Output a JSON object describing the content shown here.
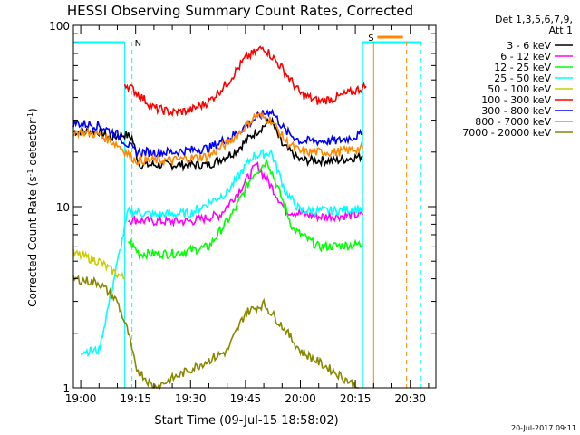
{
  "chart_data": {
    "type": "line",
    "title": "HESSI Observing Summary Count Rates, Corrected",
    "xlabel": "Start Time (09-Jul-15 18:58:02)",
    "ylabel": "Corrected Count Rate (s⁻¹ detector⁻¹)",
    "ylabel_main": "Corrected Count Rate (s",
    "ylabel_sup1": "-1",
    "ylabel_mid": " detector",
    "ylabel_sup2": "-1",
    "ylabel_end": ")",
    "yscale": "log",
    "ylim": [
      1,
      100
    ],
    "xlim": [
      "18:58",
      "20:37"
    ],
    "xticks": [
      "19:00",
      "19:15",
      "19:30",
      "19:45",
      "20:00",
      "20:15",
      "20:30"
    ],
    "yticks": [
      "1",
      "10",
      "100"
    ],
    "legend_position": "right",
    "legend_header": [
      "Det 1,3,5,6,7,9,",
      "Att 1"
    ],
    "series": [
      {
        "name": "3 - 6 keV",
        "color": "#000000",
        "points": [
          [
            "18:58",
            26
          ],
          [
            "19:05",
            26
          ],
          [
            "19:08",
            24
          ],
          [
            "19:12",
            25
          ],
          [
            "19:14",
            24
          ],
          [
            "19:16",
            17
          ],
          [
            "19:25",
            17
          ],
          [
            "19:35",
            17
          ],
          [
            "19:42",
            20
          ],
          [
            "19:47",
            25
          ],
          [
            "19:52",
            30
          ],
          [
            "19:55",
            22
          ],
          [
            "20:00",
            18
          ],
          [
            "20:10",
            18
          ],
          [
            "20:17",
            19
          ]
        ]
      },
      {
        "name": "6 - 12 keV",
        "color": "#ff00ff",
        "points": [
          [
            "19:13",
            8.5
          ],
          [
            "19:20",
            8.3
          ],
          [
            "19:30",
            8.3
          ],
          [
            "19:38",
            9
          ],
          [
            "19:43",
            12
          ],
          [
            "19:48",
            17
          ],
          [
            "19:52",
            13
          ],
          [
            "19:56",
            9.5
          ],
          [
            "20:05",
            8.8
          ],
          [
            "20:17",
            9
          ]
        ]
      },
      {
        "name": "12 - 25 keV",
        "color": "#00ff00",
        "points": [
          [
            "19:13",
            6.5
          ],
          [
            "19:16",
            5.5
          ],
          [
            "19:25",
            5.5
          ],
          [
            "19:35",
            6
          ],
          [
            "19:42",
            9.5
          ],
          [
            "19:47",
            15
          ],
          [
            "19:51",
            18
          ],
          [
            "19:55",
            11
          ],
          [
            "19:58",
            7.5
          ],
          [
            "20:05",
            6
          ],
          [
            "20:17",
            6.2
          ]
        ]
      },
      {
        "name": "25 - 50 keV",
        "color": "#00ffff",
        "points": [
          [
            "19:00",
            1.6
          ],
          [
            "19:05",
            1.6
          ],
          [
            "19:13",
            9.5
          ],
          [
            "19:20",
            9
          ],
          [
            "19:30",
            9.2
          ],
          [
            "19:40",
            12
          ],
          [
            "19:47",
            19
          ],
          [
            "19:52",
            20
          ],
          [
            "19:56",
            12
          ],
          [
            "20:00",
            9.5
          ],
          [
            "20:10",
            9.5
          ],
          [
            "20:17",
            9.8
          ]
        ]
      },
      {
        "name": "50 - 100 keV",
        "color": "#cccc00",
        "points": [
          [
            "18:58",
            5.5
          ],
          [
            "19:05",
            5
          ],
          [
            "19:08",
            4.5
          ],
          [
            "19:12",
            4
          ]
        ]
      },
      {
        "name": "100 - 300 keV",
        "color": "#ff0000",
        "points": [
          [
            "19:12",
            48
          ],
          [
            "19:15",
            43
          ],
          [
            "19:20",
            35
          ],
          [
            "19:25",
            33
          ],
          [
            "19:30",
            34
          ],
          [
            "19:35",
            38
          ],
          [
            "19:40",
            48
          ],
          [
            "19:45",
            66
          ],
          [
            "19:50",
            76
          ],
          [
            "19:55",
            58
          ],
          [
            "20:00",
            42
          ],
          [
            "20:05",
            38
          ],
          [
            "20:10",
            40
          ],
          [
            "20:18",
            46
          ]
        ]
      },
      {
        "name": "300 - 800 keV",
        "color": "#0000ff",
        "points": [
          [
            "18:58",
            29
          ],
          [
            "19:05",
            28
          ],
          [
            "19:10",
            25
          ],
          [
            "19:15",
            20
          ],
          [
            "19:25",
            20
          ],
          [
            "19:35",
            21
          ],
          [
            "19:42",
            25
          ],
          [
            "19:48",
            31
          ],
          [
            "19:52",
            34
          ],
          [
            "19:56",
            26
          ],
          [
            "20:00",
            23
          ],
          [
            "20:10",
            23
          ],
          [
            "20:17",
            25
          ]
        ]
      },
      {
        "name": "800 - 7000 keV",
        "color": "#ff8800",
        "points": [
          [
            "18:58",
            26
          ],
          [
            "19:05",
            25
          ],
          [
            "19:10",
            22
          ],
          [
            "19:15",
            18
          ],
          [
            "19:25",
            18
          ],
          [
            "19:35",
            19
          ],
          [
            "19:42",
            24
          ],
          [
            "19:48",
            32
          ],
          [
            "19:52",
            30
          ],
          [
            "19:56",
            23
          ],
          [
            "20:00",
            20
          ],
          [
            "20:10",
            20
          ],
          [
            "20:17",
            21
          ]
        ]
      },
      {
        "name": "7000 - 20000 keV",
        "color": "#888800",
        "points": [
          [
            "18:58",
            4
          ],
          [
            "19:05",
            3.8
          ],
          [
            "19:10",
            3
          ],
          [
            "19:13",
            2
          ],
          [
            "19:15",
            1.3
          ],
          [
            "19:20",
            1
          ],
          [
            "19:40",
            1.6
          ],
          [
            "19:45",
            2.6
          ],
          [
            "19:50",
            2.9
          ],
          [
            "19:55",
            2.2
          ],
          [
            "20:00",
            1.6
          ],
          [
            "20:10",
            1.2
          ],
          [
            "20:16",
            1
          ]
        ]
      }
    ],
    "annotations": [
      {
        "text": "N",
        "color": "#00ffff"
      },
      {
        "text": "S",
        "color": "#ff8800"
      }
    ]
  },
  "footer": {
    "timestamp": "20-Jul-2017 09:11"
  }
}
